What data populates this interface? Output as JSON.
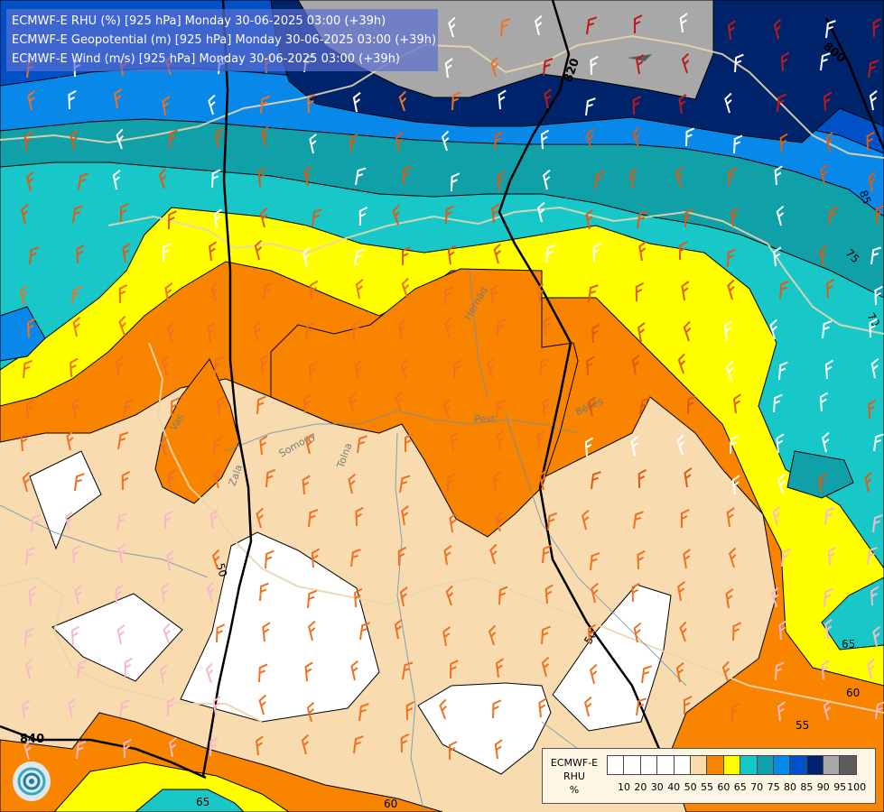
{
  "title_lines": [
    "ECMWF-E RHU (%) [925 hPa] Monday 30-06-2025 03:00 (+39h)",
    "ECMWF-E Geopotential (m) [925 hPa] Monday 30-06-2025 03:00 (+39h)",
    "ECMWF-E Wind (m/s) [925 hPa] Monday 30-06-2025 03:00 (+39h)"
  ],
  "legend": {
    "label_lines": [
      "ECMWF-E",
      "RHU",
      "%"
    ],
    "colors": [
      "#ffffff",
      "#ffffff",
      "#ffffff",
      "#ffffff",
      "#ffffff",
      "#f8dcb0",
      "#f88400",
      "#ffff00",
      "#18c8c8",
      "#10a0a8",
      "#0888e8",
      "#0050c8",
      "#00246c",
      "#a8a8a8",
      "#5c5c5c"
    ],
    "tick_labels": [
      "10",
      "20",
      "30",
      "40",
      "50",
      "55",
      "60",
      "65",
      "70",
      "75",
      "80",
      "85",
      "90",
      "95",
      "100"
    ]
  },
  "colors": {
    "rhu_50": "#ffffff",
    "rhu_55": "#f8dcb0",
    "rhu_60": "#f88400",
    "rhu_65": "#ffff00",
    "rhu_70": "#18c8c8",
    "rhu_75": "#10a0a8",
    "rhu_80": "#0888e8",
    "rhu_85": "#0050c8",
    "rhu_90": "#00246c",
    "rhu_95": "#a8a8a8",
    "rhu_100": "#5c5c5c"
  },
  "contour_labels": {
    "geo_820": "820",
    "geo_800": "800",
    "geo_840": "840",
    "rh_85": "85",
    "rh_75": "75",
    "rh_70": "70",
    "rh_65a": "65",
    "rh_60a": "60",
    "rh_55": "55",
    "rh_50a": "50",
    "rh_50b": "50",
    "rh_65b": "65",
    "rh_60b": "60",
    "rh_50c": "50"
  },
  "place_labels": {
    "hernad": "Hernád",
    "pest": "Pest",
    "somogy": "Somogy",
    "zala": "Zala",
    "tolna": "Tolna",
    "bekes": "Békés",
    "vas": "Vas"
  },
  "icons": [
    "ecmwf-logo-icon"
  ]
}
